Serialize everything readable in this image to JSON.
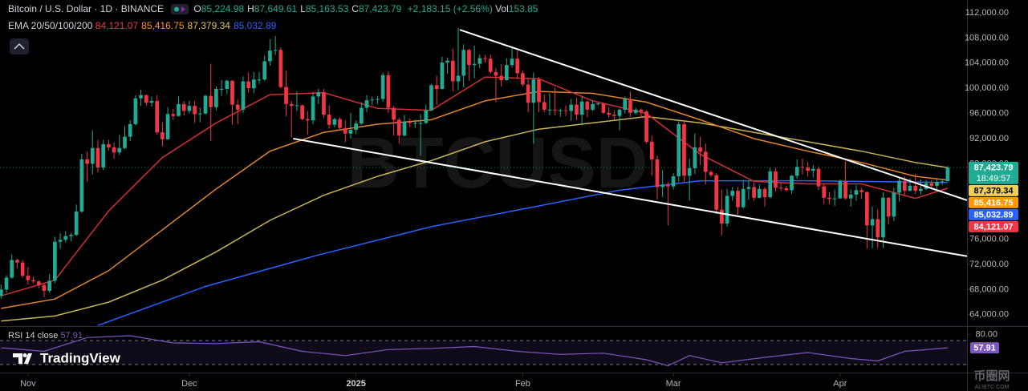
{
  "header": {
    "symbol": "Bitcoin / U.S. Dollar · 1D · BINANCE",
    "ohlc": [
      {
        "key": "O",
        "text": "85,224.98"
      },
      {
        "key": "H",
        "text": "87,649.61"
      },
      {
        "key": "L",
        "text": "85,163.53"
      },
      {
        "key": "C",
        "text": "87,423.79"
      }
    ],
    "change": "+2,183.15 (+2.56%)",
    "vol_key": "Vol",
    "vol": "153.85",
    "ema_label": "EMA 20/50/100/200",
    "ema_values": [
      {
        "text": "84,121.07",
        "color": "#f23645"
      },
      {
        "text": "85,416.75",
        "color": "#ff9800"
      },
      {
        "text": "87,379.34",
        "color": "#e6c35c"
      },
      {
        "text": "85,032.89",
        "color": "#2962ff"
      }
    ]
  },
  "watermarks": {
    "center": "BTCUSD",
    "logo": "TradingView",
    "site": "币圈网",
    "site_url": "ALIBTC.COM"
  },
  "chart_data": {
    "type": "candlestick",
    "up_color": "#22ab94",
    "down_color": "#f23645",
    "xlim": [
      -0.2,
      179.6
    ],
    "xticks": [
      {
        "value": 5,
        "label": "Nov"
      },
      {
        "value": 35,
        "label": "Dec"
      },
      {
        "value": 66,
        "label": "2025"
      },
      {
        "value": 97,
        "label": "Feb"
      },
      {
        "value": 125,
        "label": "Mar"
      },
      {
        "value": 156,
        "label": "Apr"
      }
    ],
    "ylim": [
      62190,
      114040
    ],
    "yticks": [
      {
        "value": 64000,
        "label": "64,000.00"
      },
      {
        "value": 68000,
        "label": "68,000.00"
      },
      {
        "value": 72000,
        "label": "72,000.00"
      },
      {
        "value": 76000,
        "label": "76,000.00"
      },
      {
        "value": 80000,
        "label": "80,000.00"
      },
      {
        "value": 84000,
        "label": "84,000.00"
      },
      {
        "value": 88000,
        "label": "88,000.00"
      },
      {
        "value": 92000,
        "label": "92,000.00"
      },
      {
        "value": 96000,
        "label": "96,000.00"
      },
      {
        "value": 100000,
        "label": "100,000.00"
      },
      {
        "value": 104000,
        "label": "104,000.00"
      },
      {
        "value": 108000,
        "label": "108,000.00"
      },
      {
        "value": 112000,
        "label": "112,000.00"
      }
    ],
    "open": [
      67000,
      68000,
      69900,
      72700,
      72300,
      70200,
      69500,
      69300,
      68700,
      67800,
      69400,
      75600,
      75900,
      76500,
      76700,
      80400,
      88700,
      88000,
      90500,
      87400,
      91100,
      90600,
      89800,
      90500,
      92300,
      94300,
      98400,
      98900,
      97700,
      98000,
      93000,
      91900,
      95900,
      95600,
      97500,
      96400,
      97200,
      95900,
      96000,
      98800,
      97000,
      99900,
      99900,
      101200,
      97400,
      96600,
      101100,
      100000,
      101400,
      101400,
      104300,
      106000,
      106100,
      100200,
      97500,
      97200,
      97300,
      95100,
      94900,
      98700,
      99400,
      95800,
      94200,
      95100,
      93700,
      92800,
      93400,
      94400,
      96900,
      98100,
      98200,
      98300,
      102100,
      96900,
      95000,
      92500,
      94700,
      94500,
      94500,
      94500,
      96500,
      100500,
      99900,
      104100,
      104400,
      101100,
      102000,
      106100,
      103700,
      103900,
      104800,
      104700,
      102600,
      102000,
      101300,
      103700,
      104700,
      102400,
      100600,
      97700,
      101400,
      97800,
      96600,
      96600,
      96500,
      96500,
      96400,
      97400,
      95800,
      97900,
      96600,
      97500,
      97600,
      96100,
      95800,
      95600,
      96600,
      98300,
      96100,
      96600,
      96300,
      91500,
      88700,
      84300,
      84700,
      84400,
      86000,
      94300,
      86100,
      87300,
      90600,
      89900,
      86700,
      86200,
      80700,
      78500,
      82900,
      83700,
      81100,
      84000,
      84300,
      82600,
      84000,
      82700,
      86800,
      84200,
      84100,
      83800,
      86100,
      87500,
      87400,
      86900,
      87200,
      84400,
      82600,
      82400,
      82500,
      85200,
      82500,
      83100,
      83800,
      83500,
      78200,
      79200,
      76300,
      82600,
      79600,
      83400,
      85300,
      83700,
      84500,
      83700,
      84000,
      84900,
      84500,
      85100,
      85224.98
    ],
    "high": [
      68800,
      70300,
      73600,
      72900,
      72700,
      71600,
      70000,
      69500,
      69000,
      70500,
      76400,
      77000,
      77300,
      77000,
      81500,
      89600,
      89900,
      93300,
      91800,
      91800,
      91800,
      91400,
      92600,
      94000,
      94900,
      98900,
      99800,
      99000,
      98700,
      98900,
      94600,
      97000,
      96700,
      98700,
      98000,
      98000,
      98000,
      96900,
      99000,
      103900,
      100300,
      101300,
      101400,
      101300,
      98200,
      101900,
      102500,
      102600,
      102600,
      105200,
      107800,
      108300,
      106500,
      102800,
      98000,
      99500,
      97400,
      96400,
      99400,
      99900,
      99900,
      97300,
      95300,
      95400,
      94900,
      96100,
      94900,
      97800,
      98900,
      98700,
      98800,
      102500,
      102700,
      97200,
      95300,
      95800,
      95200,
      95000,
      95900,
      97400,
      100700,
      102000,
      105000,
      104900,
      106300,
      109600,
      107000,
      106300,
      106800,
      105400,
      105300,
      105400,
      103200,
      103800,
      104800,
      106400,
      106000,
      102800,
      101500,
      102500,
      101800,
      99000,
      99200,
      100100,
      96800,
      97300,
      98300,
      98500,
      98800,
      98100,
      98000,
      97700,
      97700,
      97000,
      96500,
      96800,
      98700,
      99500,
      96900,
      96800,
      96500,
      92500,
      89300,
      87000,
      85100,
      86500,
      95000,
      95000,
      88800,
      92800,
      92300,
      91200,
      87000,
      86500,
      83900,
      84000,
      84300,
      84300,
      85300,
      85300,
      85000,
      84700,
      84300,
      87400,
      87400,
      85000,
      84500,
      86200,
      88700,
      88800,
      88300,
      87800,
      87600,
      84800,
      83500,
      83900,
      85500,
      88400,
      83900,
      84600,
      84200,
      83600,
      81200,
      80800,
      83500,
      82700,
      84200,
      85800,
      86000,
      85700,
      86400,
      85500,
      85400,
      85400,
      85500,
      85600,
      87649.61
    ],
    "low": [
      66600,
      67500,
      69700,
      71400,
      69900,
      68800,
      69000,
      68200,
      66800,
      67500,
      69000,
      74500,
      75500,
      75700,
      76500,
      80200,
      85100,
      86300,
      86600,
      87000,
      90100,
      88800,
      89400,
      90300,
      91600,
      94100,
      97200,
      97200,
      97100,
      92600,
      90800,
      91800,
      95000,
      95500,
      95700,
      96000,
      94500,
      94600,
      95800,
      91600,
      96500,
      98800,
      99100,
      94200,
      94300,
      96100,
      99300,
      99200,
      100700,
      101200,
      103600,
      105300,
      100000,
      95600,
      92200,
      96400,
      94900,
      92600,
      94300,
      97500,
      95300,
      93600,
      93800,
      93300,
      91400,
      92000,
      92700,
      94200,
      96200,
      97300,
      97500,
      97900,
      96100,
      92500,
      91200,
      92300,
      93800,
      93700,
      89300,
      94300,
      96400,
      97400,
      99800,
      102300,
      99500,
      99700,
      100100,
      101200,
      101600,
      103200,
      104100,
      102300,
      97800,
      100300,
      101200,
      103300,
      101500,
      100300,
      96200,
      91200,
      96200,
      96200,
      95700,
      95700,
      95500,
      95600,
      94800,
      94900,
      94100,
      95400,
      96400,
      97200,
      95900,
      95300,
      95000,
      93300,
      96000,
      95500,
      95800,
      95300,
      91200,
      86100,
      82300,
      82700,
      78200,
      83900,
      85100,
      85000,
      82200,
      86400,
      87800,
      84700,
      85900,
      80000,
      76600,
      78000,
      82100,
      79900,
      80900,
      82300,
      82100,
      82500,
      81200,
      82500,
      83600,
      83700,
      83600,
      83200,
      85600,
      86300,
      86000,
      85800,
      83800,
      81600,
      81600,
      81300,
      82400,
      82300,
      81200,
      82100,
      82400,
      74500,
      74600,
      74600,
      74600,
      78400,
      78900,
      82000,
      83000,
      83600,
      83200,
      83100,
      83800,
      83900,
      84000,
      84600,
      85163.53
    ],
    "close": [
      68000,
      69900,
      72700,
      72300,
      70200,
      69500,
      69300,
      68700,
      67800,
      69400,
      75600,
      75900,
      76500,
      76700,
      80400,
      88700,
      88000,
      90500,
      87400,
      91100,
      90600,
      89800,
      90500,
      92300,
      94300,
      98400,
      98900,
      97700,
      98000,
      93000,
      91900,
      95900,
      95600,
      97500,
      96400,
      97200,
      95900,
      96000,
      98800,
      97000,
      99900,
      99900,
      101200,
      97400,
      96600,
      101100,
      100000,
      101400,
      101400,
      104300,
      106000,
      106100,
      100200,
      97500,
      97200,
      97300,
      95100,
      94900,
      98700,
      99400,
      95800,
      94200,
      95100,
      93700,
      92800,
      93400,
      94400,
      96900,
      98100,
      98200,
      98300,
      102100,
      96900,
      95000,
      92500,
      94700,
      94500,
      94500,
      94500,
      96500,
      100500,
      99900,
      104100,
      104400,
      101100,
      102000,
      106100,
      103700,
      103900,
      104800,
      104700,
      102600,
      102000,
      101300,
      103700,
      104700,
      102400,
      100600,
      97700,
      101400,
      97800,
      96600,
      96600,
      96500,
      96500,
      96400,
      97400,
      95800,
      97900,
      96600,
      97500,
      97600,
      96100,
      95800,
      95600,
      96600,
      98300,
      96100,
      96600,
      96300,
      91500,
      88700,
      84300,
      84700,
      84400,
      86000,
      94300,
      86100,
      87300,
      90600,
      89900,
      86700,
      86200,
      80700,
      78500,
      82900,
      83700,
      81100,
      84000,
      84300,
      82600,
      84000,
      82700,
      86800,
      84200,
      84100,
      83800,
      86100,
      87500,
      87400,
      86900,
      87200,
      84400,
      82600,
      82400,
      82500,
      85200,
      82500,
      83100,
      83800,
      83500,
      78200,
      79200,
      76300,
      82600,
      79600,
      83400,
      85300,
      83700,
      84500,
      83700,
      84000,
      84900,
      84500,
      85100,
      85200,
      87423.79
    ],
    "series": [
      {
        "color": "#2962ff",
        "x": [
          18,
          38,
          59,
          80,
          100,
          115,
          130,
          150,
          176
        ],
        "values": [
          62300,
          68500,
          73500,
          78000,
          81300,
          83800,
          85300,
          85300,
          85032.89
        ]
      },
      {
        "color": "#c9b458",
        "x": [
          0,
          10,
          20,
          30,
          40,
          50,
          60,
          70,
          80,
          90,
          100,
          110,
          120,
          130,
          140,
          150,
          160,
          170,
          176
        ],
        "values": [
          63000,
          63800,
          66000,
          69500,
          74000,
          79000,
          83000,
          86000,
          88500,
          91500,
          93500,
          94500,
          95500,
          94500,
          93000,
          91500,
          90000,
          88200,
          87379.34
        ]
      },
      {
        "color": "#e0862b",
        "x": [
          0,
          10,
          20,
          30,
          40,
          50,
          60,
          70,
          80,
          90,
          100,
          110,
          120,
          130,
          140,
          150,
          160,
          170,
          176
        ],
        "values": [
          65000,
          66500,
          71000,
          77500,
          84000,
          90000,
          93000,
          94300,
          95000,
          98000,
          99500,
          99200,
          97800,
          95000,
          92000,
          90000,
          88200,
          86000,
          85416.75
        ]
      },
      {
        "color": "#d32f2f",
        "x": [
          0,
          10,
          20,
          30,
          40,
          50,
          60,
          70,
          80,
          90,
          100,
          110,
          120,
          130,
          140,
          150,
          160,
          170,
          176
        ],
        "values": [
          67000,
          69500,
          80500,
          89000,
          94500,
          99000,
          99300,
          96800,
          96500,
          101800,
          101500,
          98000,
          96000,
          89500,
          85200,
          84800,
          84800,
          82500,
          84121.07
        ]
      }
    ],
    "trendlines": [
      {
        "color": "#ffffff",
        "x": [
          85.3,
          179.6
        ],
        "values": [
          109300,
          82200
        ]
      },
      {
        "color": "#ffffff",
        "x": [
          54.3,
          179.6
        ],
        "values": [
          92000,
          73300
        ]
      }
    ],
    "price_badges": [
      {
        "value": 87423.79,
        "label": "87,423.79",
        "countdown": "18:49:57",
        "color": "#22ab94",
        "text_color": "#ffffff"
      },
      {
        "value": 87379.34,
        "label": "87,379.34",
        "color": "#f0d050",
        "text_color": "#000000"
      },
      {
        "value": 85416.75,
        "label": "85,416.75",
        "color": "#ff9800",
        "text_color": "#ffffff"
      },
      {
        "value": 85032.89,
        "label": "85,032.89",
        "color": "#2962ff",
        "text_color": "#ffffff"
      },
      {
        "value": 84121.07,
        "label": "84,121.07",
        "color": "#f23645",
        "text_color": "#ffffff"
      }
    ],
    "rsi": {
      "label": "RSI 14 close",
      "legend_value": "57.91",
      "color": "#7e57c2",
      "ylim": [
        20.7,
        92.7
      ],
      "yticks": [
        {
          "value": 80,
          "label": "80.00"
        }
      ],
      "bands": [
        30,
        70
      ],
      "x": [
        0,
        8,
        16,
        24,
        32,
        40,
        48,
        56,
        64,
        72,
        80,
        88,
        96,
        104,
        112,
        120,
        124,
        128,
        134,
        142,
        150,
        158,
        163,
        168,
        176
      ],
      "values": [
        58,
        52,
        75,
        78,
        66,
        65,
        68,
        52,
        45,
        55,
        57,
        60,
        52,
        47,
        49,
        38,
        28,
        45,
        33,
        42,
        50,
        40,
        36,
        52,
        57.91
      ],
      "badge": {
        "value": 57.91,
        "label": "57.91"
      }
    }
  }
}
